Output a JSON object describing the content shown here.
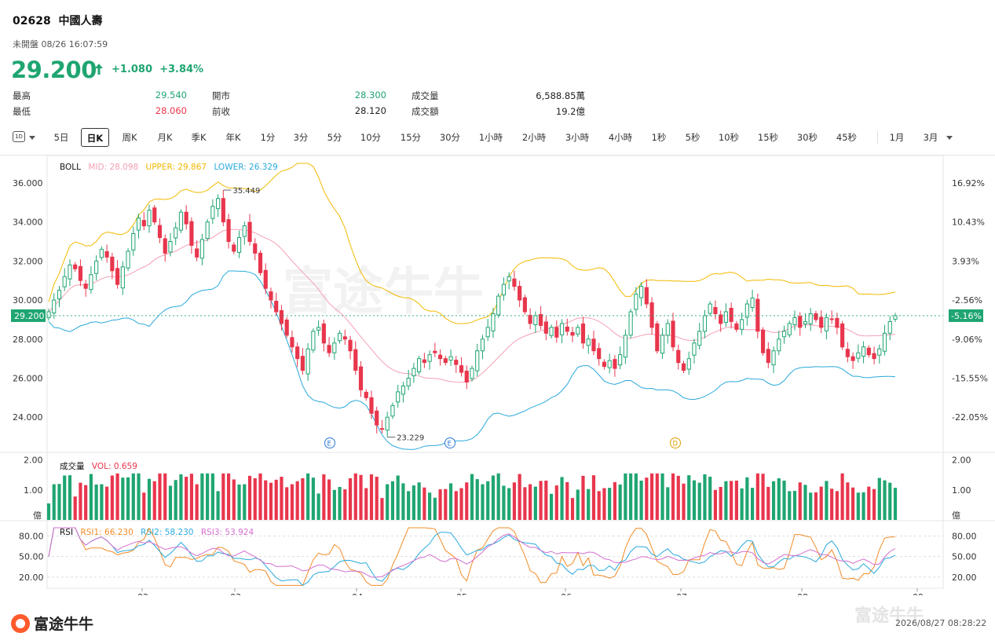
{
  "header": {
    "code": "02628",
    "name": "中國人壽",
    "status": "未開盤 08/26 16:07:59",
    "price": "29.200",
    "change": "+1.080",
    "change_pct": "+3.84%",
    "price_color": "#1fa571"
  },
  "stats": [
    {
      "label": "最高",
      "value": "29.540",
      "color": "green"
    },
    {
      "label": "最低",
      "value": "28.060",
      "color": "red"
    },
    {
      "label": "開市",
      "value": "28.300",
      "color": "green"
    },
    {
      "label": "前收",
      "value": "28.120",
      "color": "normal"
    },
    {
      "label": "成交量",
      "value": "6,588.85萬",
      "color": "normal"
    },
    {
      "label": "成交額",
      "value": "19.2億",
      "color": "normal"
    }
  ],
  "toolbar": {
    "period_icon": "1D",
    "items": [
      "5日",
      "日K",
      "周K",
      "月K",
      "季K",
      "年K",
      "1分",
      "3分",
      "5分",
      "10分",
      "15分",
      "30分",
      "1小時",
      "2小時",
      "3小時",
      "4小時",
      "1秒",
      "5秒",
      "10秒",
      "15秒",
      "30秒",
      "45秒",
      "1月",
      "3月"
    ],
    "active": "日K"
  },
  "boll": {
    "title": "BOLL",
    "mid": "MID: 28.098",
    "upper": "UPPER: 29.867",
    "lower": "LOWER: 26.329",
    "colors": {
      "mid": "#f4a0b4",
      "upper": "#f2b900",
      "lower": "#2aa9dc"
    }
  },
  "volume": {
    "title": "成交量",
    "vol": "VOL: 0.659",
    "unit": "億"
  },
  "rsi": {
    "title": "RSI",
    "rsi1": "RSI1: 66.230",
    "rsi2": "RSI2: 58.230",
    "rsi3": "RSI3: 53.924",
    "colors": {
      "rsi1": "#f28c28",
      "rsi2": "#2aa9dc",
      "rsi3": "#d46fd0"
    }
  },
  "footer": {
    "logo": "富途牛牛",
    "timestamp": "2026/08/27 08:28:22",
    "watermark": "富途牛牛"
  },
  "chart_data": {
    "type": "candlestick",
    "title": "",
    "y_ticks": [
      "36.000",
      "34.000",
      "32.000",
      "30.000",
      "28.000",
      "26.000",
      "24.000"
    ],
    "ylim": [
      22.2,
      37.0
    ],
    "pct_ticks": [
      "16.92%",
      "10.43%",
      "3.93%",
      "-2.56%",
      "-9.06%",
      "-15.55%",
      "-22.05%"
    ],
    "current_price_label": "29.200",
    "current_pct_label": "-5.16%",
    "x_ticks": [
      "02",
      "03",
      "04",
      "05",
      "06",
      "07",
      "08",
      "09"
    ],
    "annotations": {
      "high": "35.449",
      "low": "23.229",
      "markers": [
        "E",
        "E",
        "D"
      ]
    },
    "volume_ticks": [
      "2.00",
      "1.00"
    ],
    "volume_ylim": [
      0,
      2.2
    ],
    "rsi_ticks": [
      "80.00",
      "50.00",
      "20.00"
    ],
    "closes": [
      29.4,
      30.0,
      30.5,
      31.2,
      31.8,
      31.6,
      31.0,
      30.6,
      31.3,
      32.0,
      32.6,
      32.2,
      31.5,
      30.8,
      31.7,
      32.5,
      33.4,
      34.2,
      33.8,
      34.6,
      34.0,
      33.2,
      32.4,
      33.0,
      33.7,
      34.5,
      33.9,
      32.8,
      32.2,
      33.1,
      34.0,
      34.8,
      35.2,
      34.0,
      33.0,
      32.5,
      33.2,
      33.8,
      33.0,
      32.4,
      31.4,
      30.6,
      30.0,
      29.4,
      28.8,
      28.2,
      27.6,
      27.0,
      26.4,
      27.5,
      28.4,
      28.6,
      27.8,
      27.3,
      27.8,
      28.3,
      28.0,
      27.4,
      26.4,
      25.4,
      25.0,
      24.2,
      23.6,
      23.4,
      24.0,
      24.6,
      25.3,
      25.6,
      26.0,
      26.5,
      27.0,
      26.8,
      27.2,
      27.3,
      27.0,
      26.8,
      27.1,
      26.7,
      26.3,
      25.8,
      26.5,
      27.4,
      28.0,
      28.6,
      29.3,
      30.2,
      30.8,
      31.2,
      30.7,
      30.0,
      29.4,
      28.8,
      29.2,
      28.7,
      28.3,
      28.6,
      28.1,
      28.8,
      28.4,
      28.2,
      28.6,
      27.8,
      28.0,
      27.4,
      27.0,
      26.6,
      26.9,
      26.5,
      27.2,
      28.2,
      29.4,
      30.3,
      30.7,
      29.8,
      28.6,
      27.4,
      28.2,
      28.8,
      27.6,
      26.8,
      26.4,
      27.0,
      27.8,
      28.4,
      29.2,
      29.8,
      29.3,
      28.8,
      29.4,
      28.9,
      28.5,
      29.0,
      29.8,
      30.1,
      28.4,
      27.3,
      26.8,
      27.4,
      28.0,
      28.4,
      28.8,
      29.1,
      28.6,
      28.9,
      29.3,
      29.0,
      28.6,
      29.1,
      29.0,
      28.6,
      27.6,
      27.1,
      26.9,
      27.3,
      27.6,
      27.2,
      27.0,
      27.5,
      28.3,
      28.9,
      29.2
    ]
  }
}
